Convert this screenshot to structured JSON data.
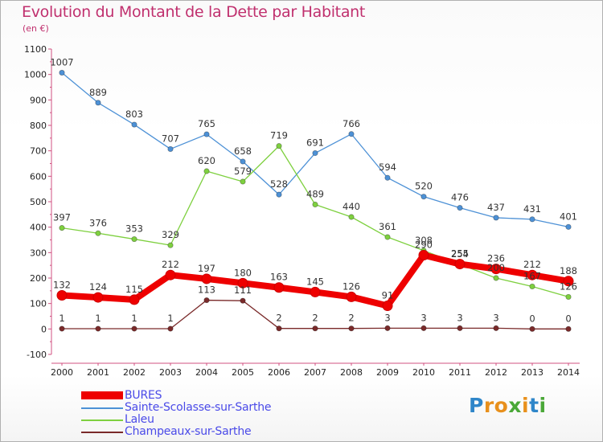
{
  "header": {
    "title": "Evolution du Montant de la Dette par Habitant",
    "subtitle": "(en €)"
  },
  "logo": {
    "text": "Proxiti",
    "letters": [
      "P",
      "r",
      "o",
      "x",
      "i",
      "t",
      "i"
    ]
  },
  "chart_data": {
    "type": "line",
    "title": "Evolution du Montant de la Dette par Habitant",
    "subtitle": "(en €)",
    "xlabel": "",
    "ylabel": "",
    "x": [
      "2000",
      "2001",
      "2002",
      "2003",
      "2004",
      "2005",
      "2006",
      "2007",
      "2008",
      "2009",
      "2010",
      "2011",
      "2012",
      "2013",
      "2014"
    ],
    "ylim": [
      -100,
      1100
    ],
    "yticks": [
      -100,
      0,
      100,
      200,
      300,
      400,
      500,
      600,
      700,
      800,
      900,
      1000,
      1100
    ],
    "grid": false,
    "legend_position": "bottom-left",
    "series": [
      {
        "name": "BURES",
        "color": "#ee0000",
        "values": [
          132,
          124,
          115,
          212,
          197,
          180,
          163,
          145,
          126,
          91,
          290,
          255,
          236,
          212,
          188
        ],
        "labels": [
          "132",
          "124",
          "115",
          "212",
          "197",
          "180",
          "163",
          "145",
          "126",
          "91",
          "290",
          "255",
          "236",
          "212",
          "188"
        ]
      },
      {
        "name": "Sainte-Scolasse-sur-Sarthe",
        "color": "#4d91d6",
        "values": [
          1007,
          889,
          803,
          707,
          765,
          658,
          528,
          691,
          766,
          594,
          520,
          476,
          437,
          431,
          401
        ],
        "labels": [
          "1007",
          "889",
          "803",
          "707",
          "765",
          "658",
          "528",
          "691",
          "766",
          "594",
          "520",
          "476",
          "437",
          "431",
          "401"
        ]
      },
      {
        "name": "Laleu",
        "color": "#7ed03f",
        "values": [
          397,
          376,
          353,
          329,
          620,
          579,
          719,
          489,
          440,
          361,
          308,
          254,
          200,
          167,
          126
        ],
        "labels": [
          "397",
          "376",
          "353",
          "329",
          "620",
          "579",
          "719",
          "489",
          "440",
          "361",
          "308",
          "254",
          "200",
          "167",
          "126"
        ]
      },
      {
        "name": "Champeaux-sur-Sarthe",
        "color": "#7a2a2a",
        "values": [
          1,
          1,
          1,
          1,
          113,
          111,
          2,
          2,
          2,
          3,
          3,
          3,
          3,
          0,
          0
        ],
        "labels": [
          "1",
          "1",
          "1",
          "1",
          "113",
          "111",
          "2",
          "2",
          "2",
          "3",
          "3",
          "3",
          "3",
          "0",
          "0"
        ]
      }
    ]
  }
}
